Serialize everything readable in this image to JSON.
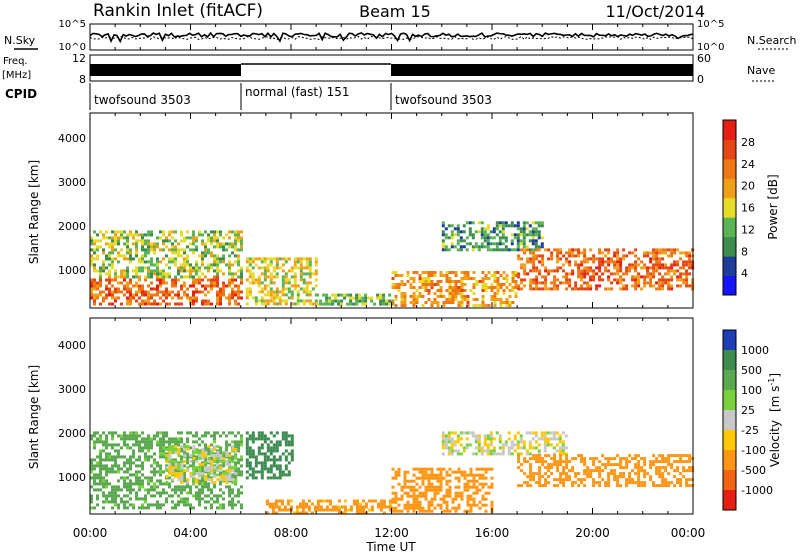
{
  "header": {
    "station": "Rankin Inlet (fitACF)",
    "beam": "Beam 15",
    "date": "11/Oct/2014"
  },
  "side_labels": {
    "noise_sky": "N.Sky",
    "noise_search": "N.Search",
    "freq_line1": "Freq.",
    "freq_line2": "[MHz]",
    "nave": "Nave",
    "cpid": "CPID"
  },
  "chart_data": [
    {
      "type": "line",
      "panel": "noise",
      "ytick_labels": [
        "10^5",
        "10^0"
      ],
      "ytick_labels_right": [
        "10^5",
        "10^0"
      ],
      "series": [
        {
          "name": "N.Sky",
          "style": "solid"
        },
        {
          "name": "N.Search",
          "style": "dotted"
        }
      ]
    },
    {
      "type": "line",
      "panel": "frequency",
      "ytick_labels": [
        "12",
        "8"
      ],
      "ytick_labels_right": [
        "60",
        "0"
      ],
      "series": [
        {
          "name": "Freq.",
          "units": "MHz"
        },
        {
          "name": "Nave"
        }
      ]
    },
    {
      "type": "table",
      "panel": "cpid",
      "segments": [
        {
          "label": "twofsound 3503",
          "start": "00:00",
          "end": "06:00"
        },
        {
          "label": "normal (fast) 151",
          "start": "06:00",
          "end": "12:00"
        },
        {
          "label": "twofsound 3503",
          "start": "12:00",
          "end": "24:00"
        }
      ]
    },
    {
      "type": "heatmap",
      "panel": "power",
      "ylabel": "Slant Range [km]",
      "ytick_labels": [
        "1000",
        "2000",
        "3000",
        "4000"
      ],
      "ylim": [
        180,
        4500
      ],
      "xlim": [
        "00:00",
        "24:00"
      ],
      "colorbar": {
        "label": "Power [dB]",
        "ticks": [
          "4",
          "8",
          "12",
          "16",
          "20",
          "24",
          "28"
        ],
        "colors": [
          "#1414ff",
          "#1e3c9a",
          "#3c8c50",
          "#5ab454",
          "#e6dc28",
          "#f0a018",
          "#f07814",
          "#e64614",
          "#e61e14"
        ]
      },
      "bands": [
        {
          "t0": 0.0,
          "t1": 6.0,
          "r0": 300,
          "r1": 900,
          "value": 26
        },
        {
          "t0": 0.0,
          "t1": 6.0,
          "r0": 900,
          "r1": 1900,
          "value": 16
        },
        {
          "t0": 6.2,
          "t1": 9.0,
          "r0": 250,
          "r1": 1300,
          "value": 18
        },
        {
          "t0": 9.0,
          "t1": 12.0,
          "r0": 250,
          "r1": 500,
          "value": 14
        },
        {
          "t0": 12.0,
          "t1": 17.0,
          "r0": 250,
          "r1": 1000,
          "value": 22
        },
        {
          "t0": 14.0,
          "t1": 18.0,
          "r0": 1500,
          "r1": 2100,
          "value": 12
        },
        {
          "t0": 17.0,
          "t1": 24.0,
          "r0": 600,
          "r1": 1500,
          "value": 26
        }
      ]
    },
    {
      "type": "heatmap",
      "panel": "velocity",
      "ylabel": "Slant Range [km]",
      "xlabel": "Time UT",
      "ytick_labels": [
        "1000",
        "2000",
        "3000",
        "4000"
      ],
      "xtick_labels": [
        "00:00",
        "04:00",
        "08:00",
        "12:00",
        "16:00",
        "20:00",
        "00:00"
      ],
      "ylim": [
        180,
        4500
      ],
      "xlim": [
        "00:00",
        "24:00"
      ],
      "colorbar": {
        "label_main": "Velocity",
        "label_units": "[m s",
        "label_sup": "-1",
        "label_close": "]",
        "ticks": [
          "1000",
          "500",
          "100",
          "25",
          "-25",
          "-100",
          "-500",
          "-1000"
        ],
        "colors": [
          "#1e3cb4",
          "#3c8c50",
          "#5aa850",
          "#78d23c",
          "#c8c8c8",
          "#ffc800",
          "#ff9614",
          "#f06414",
          "#e61e14"
        ]
      },
      "bands": [
        {
          "t0": 0.0,
          "t1": 6.0,
          "r0": 300,
          "r1": 2000,
          "value": 150
        },
        {
          "t0": 3.0,
          "t1": 5.8,
          "r0": 900,
          "r1": 1700,
          "value": 0
        },
        {
          "t0": 6.2,
          "t1": 8.0,
          "r0": 1000,
          "r1": 2000,
          "value": 800
        },
        {
          "t0": 7.0,
          "t1": 12.0,
          "r0": 200,
          "r1": 500,
          "value": -150
        },
        {
          "t0": 12.0,
          "t1": 16.0,
          "r0": 250,
          "r1": 1200,
          "value": -300
        },
        {
          "t0": 14.0,
          "t1": 19.0,
          "r0": 1500,
          "r1": 2000,
          "value": 0
        },
        {
          "t0": 17.0,
          "t1": 24.0,
          "r0": 800,
          "r1": 1500,
          "value": -200
        }
      ]
    }
  ]
}
